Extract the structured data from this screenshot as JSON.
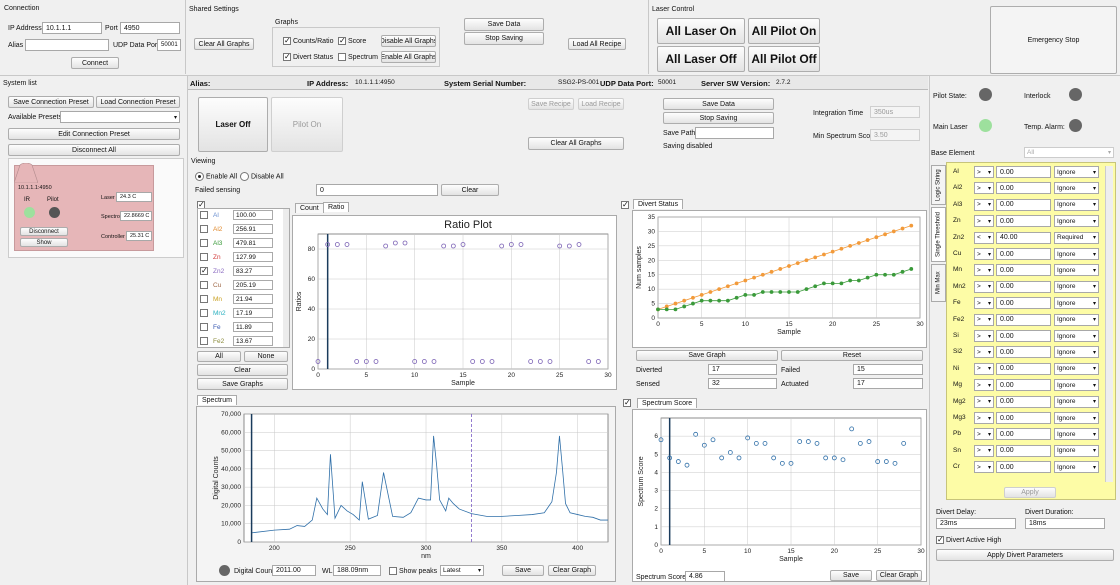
{
  "connection": {
    "title": "Connection",
    "ip_label": "IP Address",
    "ip": "10.1.1.1",
    "port_label": "Port",
    "port": "4950",
    "alias_label": "Alias",
    "alias": "",
    "udp_label": "UDP Data Port",
    "udp": "50001",
    "connect": "Connect"
  },
  "shared": {
    "title": "Shared Settings",
    "clear_all": "Clear All Graphs",
    "graphs_title": "Graphs",
    "counts": "Counts/Ratio",
    "score": "Score",
    "divert": "Divert Status",
    "spectrum": "Spectrum",
    "disable_all": "Disable All Graphs",
    "enable_all": "Enable All Graphs",
    "save_data": "Save Data",
    "stop_saving": "Stop Saving",
    "load_recipe": "Load All Recipe"
  },
  "laser": {
    "title": "Laser Control",
    "all_on": "All Laser On",
    "pilot_on": "All Pilot On",
    "all_off": "All Laser Off",
    "pilot_off": "All Pilot Off",
    "emergency": "Emergency Stop"
  },
  "system": {
    "title": "System list",
    "save_preset": "Save Connection Preset",
    "load_preset": "Load Connection Preset",
    "available": "Available Presets",
    "edit": "Edit Connection Preset",
    "disconnect_all": "Disconnect All"
  },
  "card": {
    "host": "10.1.1.1:4950",
    "ir": "IR",
    "pilot": "Pilot",
    "disconnect": "Disconnect",
    "show": "Show",
    "laser_lbl": "Laser",
    "laser": "24.3 C",
    "spectro_lbl": "Spectro",
    "spectro": "22.8669 C",
    "ctrl_lbl": "Controller",
    "ctrl": "25.31 C"
  },
  "header": {
    "alias": "Alias:",
    "ip_lbl": "IP Address:",
    "ip": "10.1.1.1:4950",
    "serial_lbl": "System Serial Number:",
    "serial": "SSG2-PS-001",
    "udp_lbl": "UDP Data Port:",
    "udp": "50001",
    "sw_lbl": "Server SW Version:",
    "sw": "2.7.2"
  },
  "device": {
    "laser_off": "Laser Off",
    "pilot_on": "Pilot On",
    "save_recipe": "Save Recipe",
    "load_recipe": "Load Recipe",
    "save_data": "Save Data",
    "stop_saving": "Stop Saving",
    "save_path": "Save Path",
    "saving_disabled": "Saving disabled",
    "clear_all": "Clear All Graphs",
    "int_time": "Integration Time",
    "int_val": "350us",
    "min_score": "Min Spectrum Score",
    "min_val": "3.50"
  },
  "viewing": {
    "title": "Viewing",
    "enable": "Enable All",
    "disable": "Disable All",
    "failed": "Failed sensing",
    "failed_val": "0",
    "clear": "Clear"
  },
  "elements": [
    {
      "n": "Al",
      "v": "100.00",
      "c": "#6a8fd0",
      "chk": false
    },
    {
      "n": "Al2",
      "v": "256.91",
      "c": "#e08a2e",
      "chk": false
    },
    {
      "n": "Al3",
      "v": "479.81",
      "c": "#3a9a3a",
      "chk": false
    },
    {
      "n": "Zn",
      "v": "127.99",
      "c": "#d23a3a",
      "chk": false
    },
    {
      "n": "Zn2",
      "v": "83.27",
      "c": "#8a6ac0",
      "chk": true
    },
    {
      "n": "Cu",
      "v": "205.19",
      "c": "#a06a4a",
      "chk": false
    },
    {
      "n": "Mn",
      "v": "21.94",
      "c": "#c9a020",
      "chk": false
    },
    {
      "n": "Mn2",
      "v": "17.19",
      "c": "#2ab0c0",
      "chk": false
    },
    {
      "n": "Fe",
      "v": "11.89",
      "c": "#3a5ab0",
      "chk": false
    },
    {
      "n": "Fe2",
      "v": "13.67",
      "c": "#8a8a3a",
      "chk": false
    }
  ],
  "el_btns": {
    "all": "All",
    "none": "None",
    "clear": "Clear",
    "save": "Save Graphs"
  },
  "ratio": {
    "tab1": "Count",
    "tab2": "Ratio",
    "title": "Ratio Plot",
    "ylabel": "Ratios",
    "xlabel": "Sample"
  },
  "divert": {
    "tab": "Divert Status",
    "ylabel": "Num samples",
    "xlabel": "Sample",
    "save": "Save Graph",
    "reset": "Reset",
    "diverted_lbl": "Diverted",
    "diverted": "17",
    "failed_lbl": "Failed",
    "failed": "15",
    "sensed_lbl": "Sensed",
    "sensed": "32",
    "actuated_lbl": "Actuated",
    "actuated": "17"
  },
  "spectrum": {
    "tab": "Spectrum",
    "ylabel": "Digital Counts",
    "xlabel": "nm",
    "dc_lbl": "Digital Count",
    "dc": "2011.00",
    "wl_lbl": "WL",
    "wl": "188.09nm",
    "show_peaks": "Show peaks",
    "latest": "Latest",
    "save": "Save",
    "clear": "Clear Graph"
  },
  "score": {
    "tab": "Spectrum Score",
    "ylabel": "Spectrum Score",
    "xlabel": "Sample",
    "score_lbl": "Spectrum Score",
    "score": "4.86",
    "save": "Save",
    "clear": "Clear Graph"
  },
  "status": {
    "pilot_state": "Pilot State:",
    "interlock": "Interlock",
    "main_laser": "Main Laser",
    "temp_alarm": "Temp. Alarm:",
    "base_lbl": "Base Element",
    "base": "All"
  },
  "vtabs": {
    "t1": "Logic String",
    "t2": "Single Threshold",
    "t3": "Min Max"
  },
  "thresholds": [
    {
      "n": "Al",
      "op": ">",
      "v": "0.00",
      "m": "Ignore"
    },
    {
      "n": "Al2",
      "op": ">",
      "v": "0.00",
      "m": "Ignore"
    },
    {
      "n": "Al3",
      "op": ">",
      "v": "0.00",
      "m": "Ignore"
    },
    {
      "n": "Zn",
      "op": ">",
      "v": "0.00",
      "m": "Ignore"
    },
    {
      "n": "Zn2",
      "op": "<",
      "v": "40.00",
      "m": "Required"
    },
    {
      "n": "Cu",
      "op": ">",
      "v": "0.00",
      "m": "Ignore"
    },
    {
      "n": "Mn",
      "op": ">",
      "v": "0.00",
      "m": "Ignore"
    },
    {
      "n": "Mn2",
      "op": ">",
      "v": "0.00",
      "m": "Ignore"
    },
    {
      "n": "Fe",
      "op": ">",
      "v": "0.00",
      "m": "Ignore"
    },
    {
      "n": "Fe2",
      "op": ">",
      "v": "0.00",
      "m": "Ignore"
    },
    {
      "n": "Si",
      "op": ">",
      "v": "0.00",
      "m": "Ignore"
    },
    {
      "n": "Si2",
      "op": ">",
      "v": "0.00",
      "m": "Ignore"
    },
    {
      "n": "Ni",
      "op": ">",
      "v": "0.00",
      "m": "Ignore"
    },
    {
      "n": "Mg",
      "op": ">",
      "v": "0.00",
      "m": "Ignore"
    },
    {
      "n": "Mg2",
      "op": ">",
      "v": "0.00",
      "m": "Ignore"
    },
    {
      "n": "Mg3",
      "op": ">",
      "v": "0.00",
      "m": "Ignore"
    },
    {
      "n": "Pb",
      "op": ">",
      "v": "0.00",
      "m": "Ignore"
    },
    {
      "n": "Sn",
      "op": ">",
      "v": "0.00",
      "m": "Ignore"
    },
    {
      "n": "Cr",
      "op": ">",
      "v": "0.00",
      "m": "Ignore"
    }
  ],
  "apply": "Apply",
  "divert_params": {
    "delay_lbl": "Divert Delay:",
    "delay": "23ms",
    "dur_lbl": "Divert Duration:",
    "dur": "18ms",
    "active_high": "Divert Active High",
    "apply": "Apply Divert Parameters"
  },
  "chart_data": [
    {
      "type": "scatter",
      "title": "Ratio Plot",
      "xlabel": "Sample",
      "ylabel": "Ratios",
      "xlim": [
        0,
        30
      ],
      "ylim": [
        0,
        90
      ],
      "xticks": [
        0,
        5,
        10,
        15,
        20,
        25,
        30
      ],
      "yticks": [
        0,
        20,
        40,
        60,
        80
      ],
      "x": [
        0,
        1,
        2,
        3,
        4,
        5,
        6,
        7,
        8,
        9,
        10,
        11,
        12,
        13,
        14,
        15,
        16,
        17,
        18,
        19,
        20,
        21,
        22,
        23,
        24,
        25,
        26,
        27,
        28,
        29
      ],
      "y": [
        5,
        83,
        83,
        83,
        5,
        5,
        5,
        82,
        84,
        84,
        5,
        5,
        5,
        82,
        82,
        83,
        5,
        5,
        5,
        82,
        83,
        83,
        5,
        5,
        5,
        82,
        82,
        83,
        5,
        5
      ]
    },
    {
      "type": "line",
      "xlabel": "Sample",
      "ylabel": "Num samples",
      "xlim": [
        0,
        30
      ],
      "ylim": [
        0,
        35
      ],
      "xticks": [
        0,
        5,
        10,
        15,
        20,
        25,
        30
      ],
      "yticks": [
        0,
        5,
        10,
        15,
        20,
        25,
        30,
        35
      ],
      "x": [
        0,
        1,
        2,
        3,
        4,
        5,
        6,
        7,
        8,
        9,
        10,
        11,
        12,
        13,
        14,
        15,
        16,
        17,
        18,
        19,
        20,
        21,
        22,
        23,
        24,
        25,
        26,
        27,
        28,
        29
      ],
      "series": [
        {
          "values": [
            3,
            4,
            5,
            6,
            7,
            8,
            9,
            10,
            11,
            12,
            13,
            14,
            15,
            16,
            17,
            18,
            19,
            20,
            21,
            22,
            23,
            24,
            25,
            26,
            27,
            28,
            29,
            30,
            31,
            32
          ],
          "color": "#f29a3a"
        },
        {
          "values": [
            3,
            3,
            3,
            4,
            5,
            6,
            6,
            6,
            6,
            7,
            8,
            8,
            9,
            9,
            9,
            9,
            9,
            10,
            11,
            12,
            12,
            12,
            13,
            13,
            14,
            15,
            15,
            15,
            16,
            17
          ],
          "color": "#3a9a3a"
        }
      ]
    },
    {
      "type": "line",
      "xlabel": "nm",
      "ylabel": "Digital Counts",
      "xlim": [
        180,
        420
      ],
      "ylim": [
        0,
        70000
      ],
      "xticks": [
        200,
        250,
        300,
        350,
        400
      ],
      "yticks": [
        0,
        10000,
        20000,
        30000,
        40000,
        50000,
        60000,
        70000
      ],
      "x": [
        185,
        200,
        210,
        215,
        220,
        225,
        228,
        232,
        235,
        237,
        240,
        244,
        248,
        252,
        256,
        258,
        262,
        268,
        272,
        278,
        285,
        290,
        295,
        300,
        303,
        305,
        307,
        309,
        311,
        313,
        315,
        318,
        322,
        330,
        340,
        350,
        360,
        370,
        378,
        383,
        386,
        388,
        390,
        392,
        395,
        400,
        405,
        410,
        415,
        420
      ],
      "values": [
        5000,
        6500,
        7000,
        9000,
        8500,
        12000,
        24000,
        18000,
        15000,
        48000,
        13000,
        20000,
        17000,
        15000,
        12000,
        33000,
        12500,
        14500,
        38000,
        14000,
        13500,
        16000,
        24000,
        23000,
        23000,
        58000,
        42000,
        23000,
        20000,
        17000,
        24000,
        21000,
        18000,
        15500,
        14000,
        14000,
        14500,
        15000,
        16000,
        22000,
        38000,
        58000,
        40000,
        21000,
        16000,
        15000,
        14000,
        13500,
        12000,
        12000
      ]
    },
    {
      "type": "scatter",
      "xlabel": "Sample",
      "ylabel": "Spectrum Score",
      "xlim": [
        0,
        30
      ],
      "ylim": [
        0,
        7
      ],
      "xticks": [
        0,
        5,
        10,
        15,
        20,
        25,
        30
      ],
      "yticks": [
        0,
        1,
        2,
        3,
        4,
        5,
        6
      ],
      "x": [
        0,
        1,
        2,
        3,
        4,
        5,
        6,
        7,
        8,
        9,
        10,
        11,
        12,
        13,
        14,
        15,
        16,
        17,
        18,
        19,
        20,
        21,
        22,
        23,
        24,
        25,
        26,
        27,
        28
      ],
      "y": [
        5.8,
        4.8,
        4.6,
        4.4,
        6.1,
        5.5,
        5.8,
        4.8,
        5.1,
        4.8,
        5.9,
        5.6,
        5.6,
        4.8,
        4.5,
        4.5,
        5.7,
        5.7,
        5.6,
        4.8,
        4.8,
        4.7,
        6.4,
        5.6,
        5.7,
        4.6,
        4.6,
        4.5,
        5.6
      ]
    }
  ]
}
